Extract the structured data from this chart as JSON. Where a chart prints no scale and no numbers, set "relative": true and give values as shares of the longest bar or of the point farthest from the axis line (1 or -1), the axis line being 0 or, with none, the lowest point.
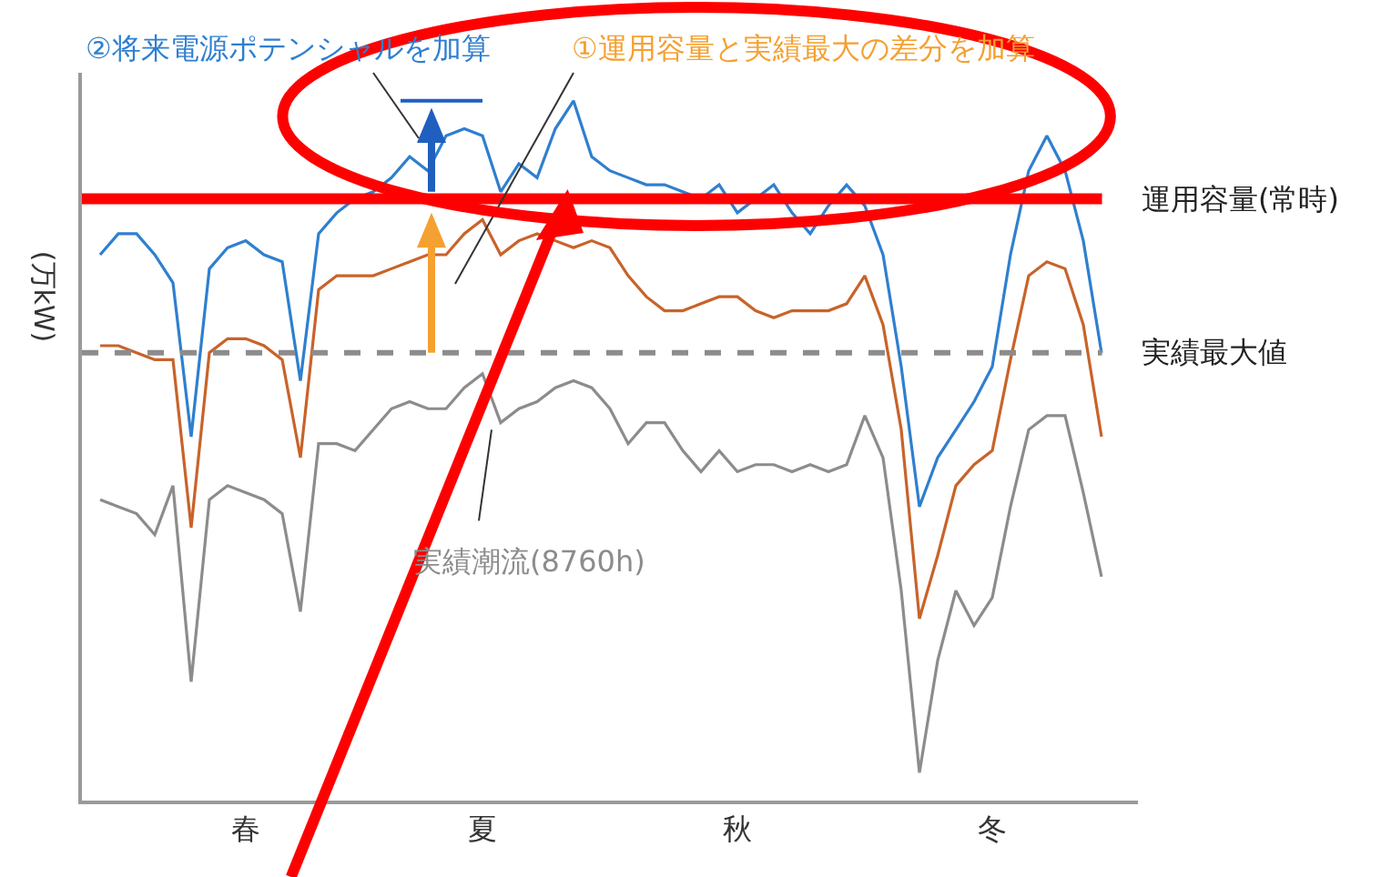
{
  "chart_data": {
    "type": "line",
    "relative": true,
    "ylabel": "(万kW)",
    "categories": [
      null,
      null,
      null,
      null,
      null,
      null,
      null,
      null,
      "春",
      null,
      null,
      null,
      null,
      null,
      null,
      null,
      null,
      null,
      null,
      null,
      null,
      "夏",
      null,
      null,
      null,
      null,
      null,
      null,
      null,
      null,
      null,
      null,
      null,
      null,
      null,
      "秋",
      null,
      null,
      null,
      null,
      null,
      null,
      null,
      null,
      null,
      null,
      null,
      null,
      null,
      "冬",
      null,
      null,
      null,
      null,
      null,
      null
    ],
    "marker": "none",
    "line_style": "solid",
    "annotations": [
      "②将来電源ポテンシャルを加算",
      "①運用容量と実績最大の差分を加算",
      "実績潮流(8760h)"
    ],
    "ref_lines": [
      {
        "axis": "y",
        "value": 0.86,
        "label": "運用容量(常時)",
        "color": "#ff0000",
        "line_style": "solid"
      },
      {
        "axis": "y",
        "value": 0.64,
        "label": "実績最大値",
        "color": "#8c8c8c",
        "line_style": "dashed"
      }
    ],
    "series": [
      {
        "color": "#2f7fcf",
        "values": [
          0.78,
          0.81,
          0.81,
          0.78,
          0.74,
          0.52,
          0.76,
          0.79,
          0.8,
          0.78,
          0.77,
          0.6,
          0.81,
          0.84,
          0.86,
          0.87,
          0.89,
          0.92,
          0.9,
          0.95,
          0.96,
          0.95,
          0.87,
          0.91,
          0.89,
          0.96,
          1.0,
          0.92,
          0.9,
          0.89,
          0.88,
          0.88,
          0.87,
          0.86,
          0.88,
          0.84,
          0.86,
          0.88,
          0.84,
          0.81,
          0.85,
          0.88,
          0.85,
          0.78,
          0.62,
          0.42,
          0.49,
          0.53,
          0.57,
          0.62,
          0.78,
          0.9,
          0.95,
          0.9,
          0.8,
          0.64
        ]
      },
      {
        "color": "#c8632a",
        "values": [
          0.65,
          0.65,
          0.64,
          0.63,
          0.63,
          0.39,
          0.64,
          0.66,
          0.66,
          0.65,
          0.63,
          0.49,
          0.73,
          0.75,
          0.75,
          0.75,
          0.76,
          0.77,
          0.78,
          0.78,
          0.81,
          0.83,
          0.78,
          0.8,
          0.81,
          0.8,
          0.79,
          0.8,
          0.79,
          0.75,
          0.72,
          0.7,
          0.7,
          0.71,
          0.72,
          0.72,
          0.7,
          0.69,
          0.7,
          0.7,
          0.7,
          0.71,
          0.75,
          0.68,
          0.53,
          0.26,
          0.35,
          0.45,
          0.48,
          0.5,
          0.63,
          0.75,
          0.77,
          0.76,
          0.68,
          0.52
        ]
      },
      {
        "color": "#8c8c8c",
        "values": [
          0.43,
          0.42,
          0.41,
          0.38,
          0.45,
          0.17,
          0.43,
          0.45,
          0.44,
          0.43,
          0.41,
          0.27,
          0.51,
          0.51,
          0.5,
          0.53,
          0.56,
          0.57,
          0.56,
          0.56,
          0.59,
          0.61,
          0.54,
          0.56,
          0.57,
          0.59,
          0.6,
          0.59,
          0.56,
          0.51,
          0.54,
          0.54,
          0.5,
          0.47,
          0.5,
          0.47,
          0.48,
          0.48,
          0.47,
          0.48,
          0.47,
          0.48,
          0.55,
          0.49,
          0.3,
          0.04,
          0.2,
          0.3,
          0.25,
          0.29,
          0.42,
          0.53,
          0.55,
          0.55,
          0.44,
          0.32
        ]
      }
    ]
  }
}
